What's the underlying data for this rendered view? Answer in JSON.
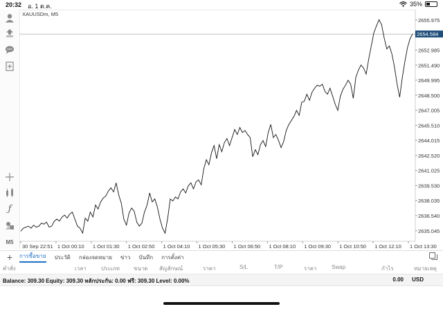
{
  "status": {
    "time": "20:32",
    "date": "อ. 1 ต.ค.",
    "battery": "35%"
  },
  "toolbar": {
    "timeframe_label": "M5",
    "tools": [
      "account-icon",
      "trade-arrows-icon",
      "chat-icon",
      "new-document-icon",
      "crosshair-icon",
      "indicators-icon",
      "function-icon",
      "objects-icon"
    ]
  },
  "chart": {
    "symbol_label": "XAUUSDm, M5",
    "current_price": "2654.584",
    "price_ticks": [
      "2655.975",
      "2652.985",
      "2651.490",
      "2649.995",
      "2648.500",
      "2647.005",
      "2645.510",
      "2644.015",
      "2642.520",
      "2641.025",
      "2639.530",
      "2638.035",
      "2636.540",
      "2635.045"
    ],
    "time_ticks": [
      "30 Sep 22:51",
      "1 Oct 00:10",
      "1 Oct 01:30",
      "1 Oct 02:50",
      "1 Oct 04:10",
      "1 Oct 05:30",
      "1 Oct 06:50",
      "1 Oct 08:10",
      "1 Oct 09:30",
      "1 Oct 10:50",
      "1 Oct 12:10",
      "1 Oct 13:30"
    ]
  },
  "chart_data": {
    "type": "line",
    "ylim": [
      2634.0,
      2657.0
    ],
    "current_price": 2654.584,
    "x": [
      "30 Sep 22:51",
      "1 Oct 00:10",
      "1 Oct 01:30",
      "1 Oct 02:50",
      "1 Oct 04:10",
      "1 Oct 05:30",
      "1 Oct 06:50",
      "1 Oct 08:10",
      "1 Oct 09:30",
      "1 Oct 10:50",
      "1 Oct 12:10",
      "1 Oct 13:30"
    ],
    "close_values": [
      2635.0,
      2635.3,
      2635.4,
      2635.5,
      2635.3,
      2635.6,
      2635.4,
      2635.5,
      2635.8,
      2635.7,
      2635.9,
      2635.4,
      2635.5,
      2636.0,
      2636.2,
      2636.0,
      2636.4,
      2636.6,
      2636.3,
      2636.7,
      2636.9,
      2636.2,
      2635.5,
      2635.3,
      2634.8,
      2636.3,
      2636.0,
      2636.9,
      2636.4,
      2637.6,
      2637.2,
      2637.9,
      2638.3,
      2638.5,
      2639.0,
      2639.3,
      2638.9,
      2639.8,
      2638.6,
      2637.8,
      2636.2,
      2635.6,
      2636.8,
      2637.3,
      2637.0,
      2635.9,
      2635.5,
      2635.8,
      2636.9,
      2637.6,
      2638.8,
      2637.9,
      2638.2,
      2637.4,
      2636.2,
      2635.3,
      2634.8,
      2636.3,
      2638.2,
      2638.0,
      2638.4,
      2638.2,
      2638.9,
      2639.2,
      2638.8,
      2639.5,
      2639.8,
      2639.2,
      2639.9,
      2640.1,
      2639.6,
      2641.2,
      2642.1,
      2641.6,
      2642.8,
      2643.5,
      2642.2,
      2643.6,
      2642.9,
      2643.8,
      2644.2,
      2643.5,
      2644.3,
      2645.1,
      2644.6,
      2645.3,
      2644.8,
      2645.0,
      2644.6,
      2644.3,
      2642.4,
      2643.1,
      2642.6,
      2643.6,
      2644.0,
      2643.4,
      2644.8,
      2645.6,
      2644.3,
      2644.6,
      2644.0,
      2643.3,
      2643.9,
      2645.0,
      2645.6,
      2646.0,
      2646.4,
      2647.0,
      2646.5,
      2647.8,
      2647.9,
      2648.6,
      2648.0,
      2648.8,
      2649.2,
      2649.5,
      2649.4,
      2649.6,
      2648.9,
      2648.6,
      2649.2,
      2648.4,
      2647.6,
      2647.0,
      2648.4,
      2649.1,
      2649.5,
      2650.0,
      2649.6,
      2648.2,
      2650.3,
      2651.0,
      2651.5,
      2651.2,
      2650.6,
      2652.1,
      2653.4,
      2654.7,
      2655.4,
      2656.0,
      2655.5,
      2654.2,
      2653.1,
      2653.4,
      2652.6,
      2651.3,
      2649.6,
      2648.3,
      2650.2,
      2651.8,
      2653.2,
      2654.1,
      2654.584
    ]
  },
  "bottom_tabs": {
    "tab1": "การซื้อขาย",
    "tab2": "ประวัติ",
    "tab3": "กล่องจดหมาย",
    "tab4": "ข่าว",
    "tab5": "บันทึก",
    "tab6": "การตั้งค่า"
  },
  "columns": {
    "col1": "คำสั่ง",
    "col2": "เวลา",
    "col3": "ประเภท",
    "col4": "ขนาด",
    "col5": "สัญลักษณ์",
    "col6": "ราคา",
    "col7": "S/L",
    "col8": "T/P",
    "col9": "ราคา",
    "col10": "Swap",
    "col11": "กำไร",
    "col12": "หมายเหตุ"
  },
  "account": {
    "summary": "Balance: 309.30 Equity: 309.30 หลักประกัน: 0.00 ฟรี: 309.30 Level: 0.00%",
    "profit": "0.00",
    "currency": "USD"
  }
}
